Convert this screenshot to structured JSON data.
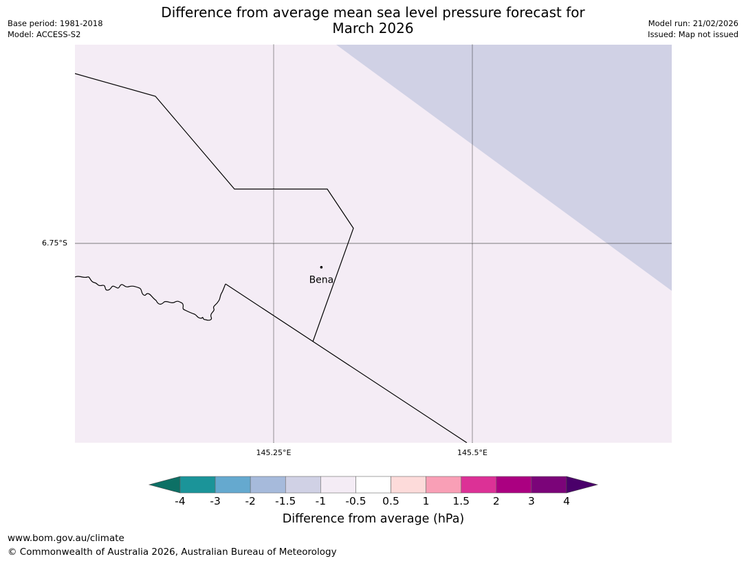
{
  "header": {
    "title_line1": "Difference from average mean sea level pressure forecast for",
    "title_line2": "March 2026",
    "base_period": "Base period: 1981-2018",
    "model": "Model: ACCESS-S2",
    "model_run": "Model run: 21/02/2026",
    "issued": "Issued: Map not issued"
  },
  "map": {
    "lat_label": "6.75°S",
    "lon_labels": [
      "145.25°E",
      "145.5°E"
    ],
    "place": {
      "name": "Bena",
      "lat": -6.78,
      "lon": 145.31
    },
    "background_color": "#f4ecf5",
    "shaded_region_color": "#d0d1e5",
    "shaded_region_category": "-1.5 to -1"
  },
  "colorbar": {
    "title": "Difference from average (hPa)",
    "ticks": [
      "-4",
      "-3",
      "-2",
      "-1.5",
      "-1",
      "-0.5",
      "0.5",
      "1",
      "1.5",
      "2",
      "3",
      "4"
    ],
    "colors": [
      "#0d7065",
      "#1b9499",
      "#65a9cf",
      "#a6badb",
      "#d0d1e5",
      "#f4ecf5",
      "#ffffff",
      "#fddbda",
      "#f99fb6",
      "#dc3196",
      "#ab0081",
      "#7b0479",
      "#4a006a"
    ]
  },
  "footer": {
    "url": "www.bom.gov.au/climate",
    "copyright": "© Commonwealth of Australia 2026, Australian Bureau of Meteorology"
  }
}
